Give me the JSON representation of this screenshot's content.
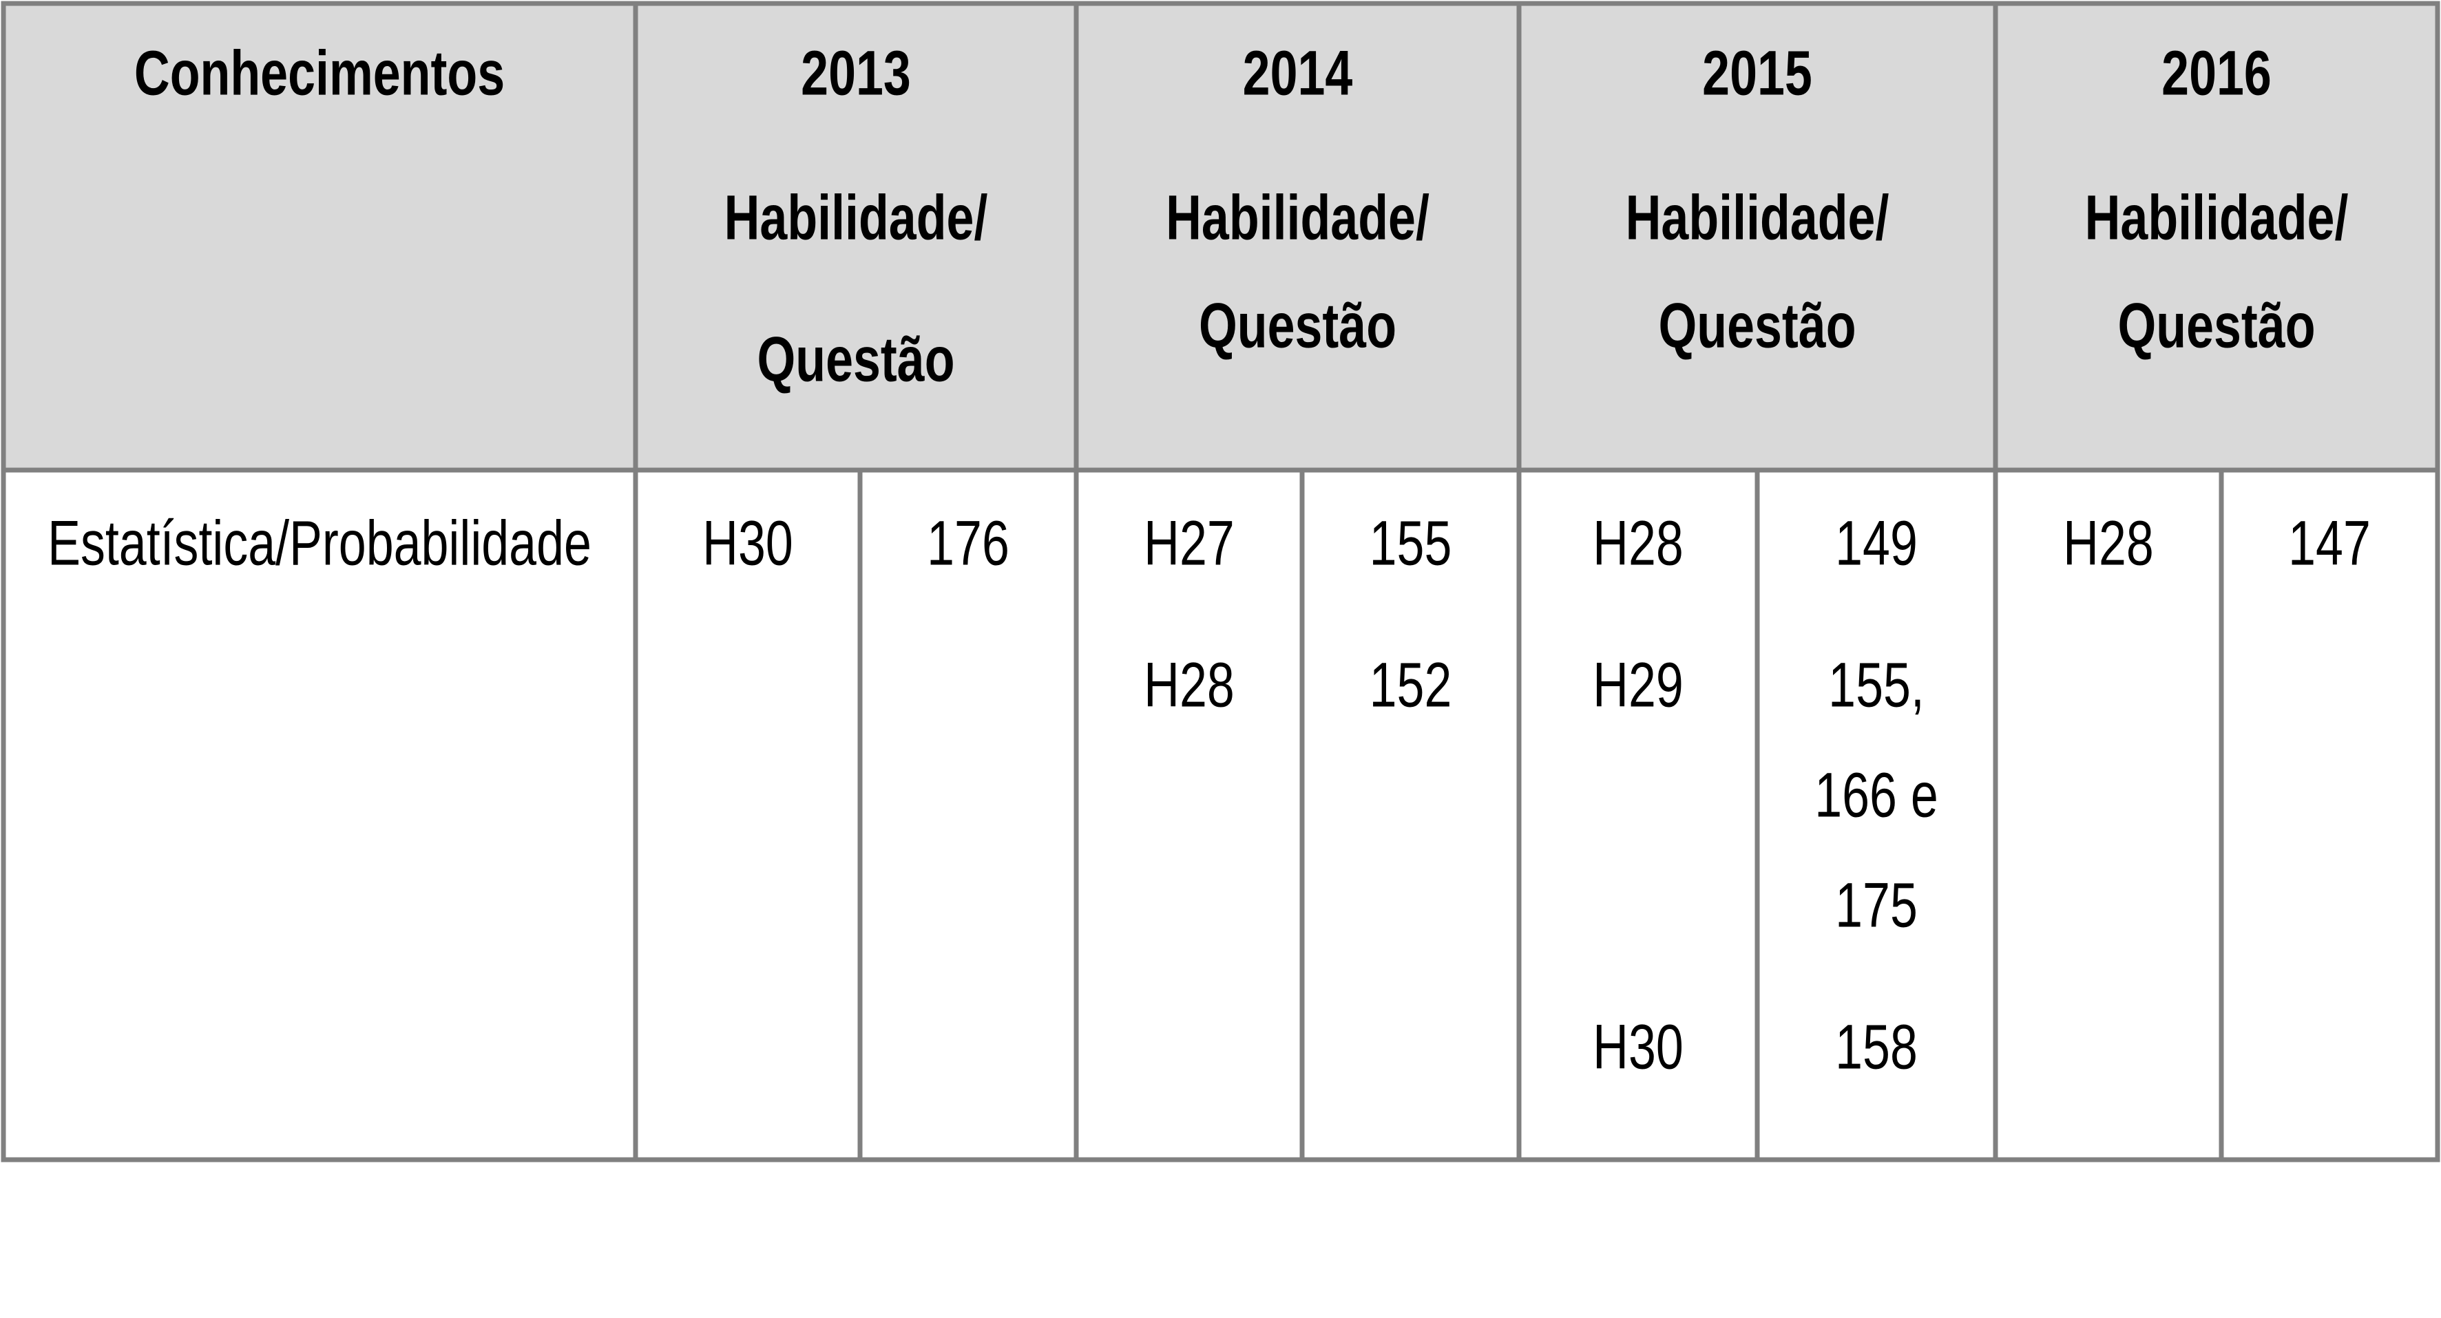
{
  "table": {
    "header": {
      "first": "Conhecimentos",
      "years": [
        {
          "year": "2013",
          "label_lines": [
            "Habilidade/",
            "Questão"
          ]
        },
        {
          "year": "2014",
          "label_lines": [
            "Habilidade/",
            "Questão"
          ]
        },
        {
          "year": "2015",
          "label_lines": [
            "Habilidade/",
            "Questão"
          ]
        },
        {
          "year": "2016",
          "label_lines": [
            "Habilidade/",
            "Questão"
          ]
        }
      ]
    },
    "rows": [
      {
        "label": "Estatística/Probabilidade",
        "years": [
          [
            {
              "skill": "H30",
              "questions": [
                "176"
              ]
            }
          ],
          [
            {
              "skill": "H27",
              "questions": [
                "155"
              ]
            },
            {
              "skill": "H28",
              "questions": [
                "152"
              ]
            }
          ],
          [
            {
              "skill": "H28",
              "questions": [
                "149"
              ]
            },
            {
              "skill": "H29",
              "questions": [
                "155,",
                "166 e",
                "175"
              ]
            },
            {
              "skill": "H30",
              "questions": [
                "158"
              ]
            }
          ],
          [
            {
              "skill": "H28",
              "questions": [
                "147"
              ]
            }
          ]
        ]
      }
    ]
  }
}
